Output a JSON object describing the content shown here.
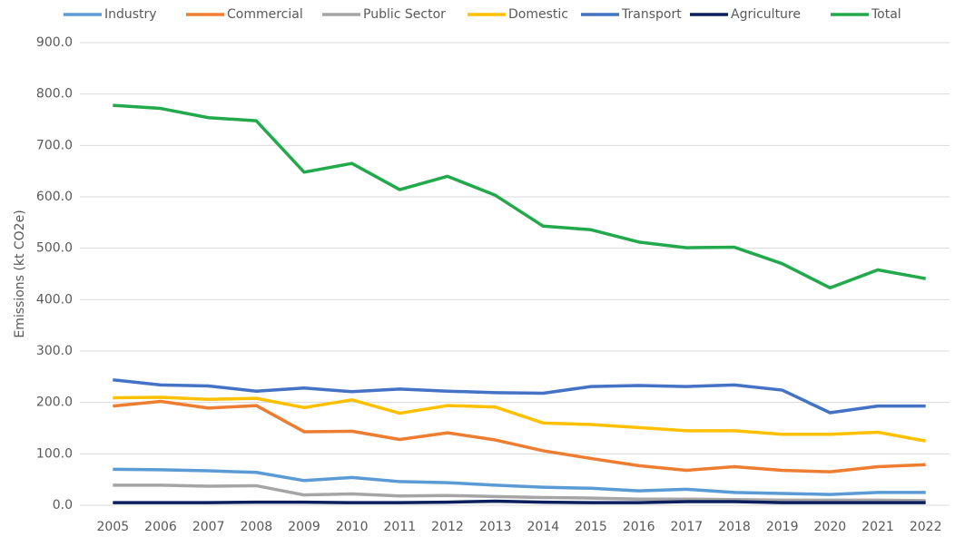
{
  "chart_data": {
    "type": "line",
    "y_label": "Emissions (kt CO2e)",
    "categories": [
      "2005",
      "2006",
      "2007",
      "2008",
      "2009",
      "2010",
      "2011",
      "2012",
      "2013",
      "2014",
      "2015",
      "2016",
      "2017",
      "2018",
      "2019",
      "2020",
      "2021",
      "2022"
    ],
    "series": [
      {
        "name": "Industry",
        "color": "#5b9bd5",
        "values": [
          70,
          69,
          67,
          64,
          48,
          54,
          46,
          44,
          39,
          35,
          33,
          28,
          31,
          25,
          23,
          21,
          25,
          25
        ]
      },
      {
        "name": "Commercial",
        "color": "#ed7d31",
        "values": [
          193,
          202,
          189,
          194,
          143,
          144,
          128,
          141,
          127,
          106,
          91,
          77,
          68,
          75,
          68,
          65,
          75,
          79
        ]
      },
      {
        "name": "Public Sector",
        "color": "#a5a5a5",
        "values": [
          39,
          39,
          37,
          38,
          20,
          22,
          18,
          19,
          17,
          15,
          14,
          12,
          12,
          11,
          10,
          10,
          10,
          9
        ]
      },
      {
        "name": "Domestic",
        "color": "#ffc000",
        "values": [
          209,
          210,
          206,
          208,
          190,
          205,
          179,
          194,
          191,
          160,
          157,
          151,
          145,
          145,
          138,
          138,
          142,
          125
        ]
      },
      {
        "name": "Transport",
        "color": "#4472c4",
        "values": [
          244,
          234,
          232,
          222,
          228,
          221,
          226,
          222,
          219,
          218,
          231,
          233,
          231,
          234,
          224,
          180,
          193,
          193
        ]
      },
      {
        "name": "Agriculture",
        "color": "#0b1f5c",
        "values": [
          5,
          5,
          5,
          6,
          6,
          5,
          5,
          6,
          8,
          6,
          5,
          5,
          7,
          7,
          5,
          5,
          5,
          5
        ]
      },
      {
        "name": "Total",
        "color": "#22a94b",
        "values": [
          778,
          772,
          754,
          748,
          648,
          665,
          614,
          640,
          603,
          543,
          536,
          512,
          501,
          502,
          470,
          423,
          458,
          441
        ]
      }
    ],
    "ylim": [
      0,
      900
    ],
    "yticks": [
      {
        "value": 0,
        "label": "0.0"
      },
      {
        "value": 100,
        "label": "100.0"
      },
      {
        "value": 200,
        "label": "200.0"
      },
      {
        "value": 300,
        "label": "300.0"
      },
      {
        "value": 400,
        "label": "400.0"
      },
      {
        "value": 500,
        "label": "500.0"
      },
      {
        "value": 600,
        "label": "600.0"
      },
      {
        "value": 700,
        "label": "700.0"
      },
      {
        "value": 800,
        "label": "800.0"
      },
      {
        "value": 900,
        "label": "900.0"
      }
    ],
    "grid": true,
    "legend": "top"
  }
}
